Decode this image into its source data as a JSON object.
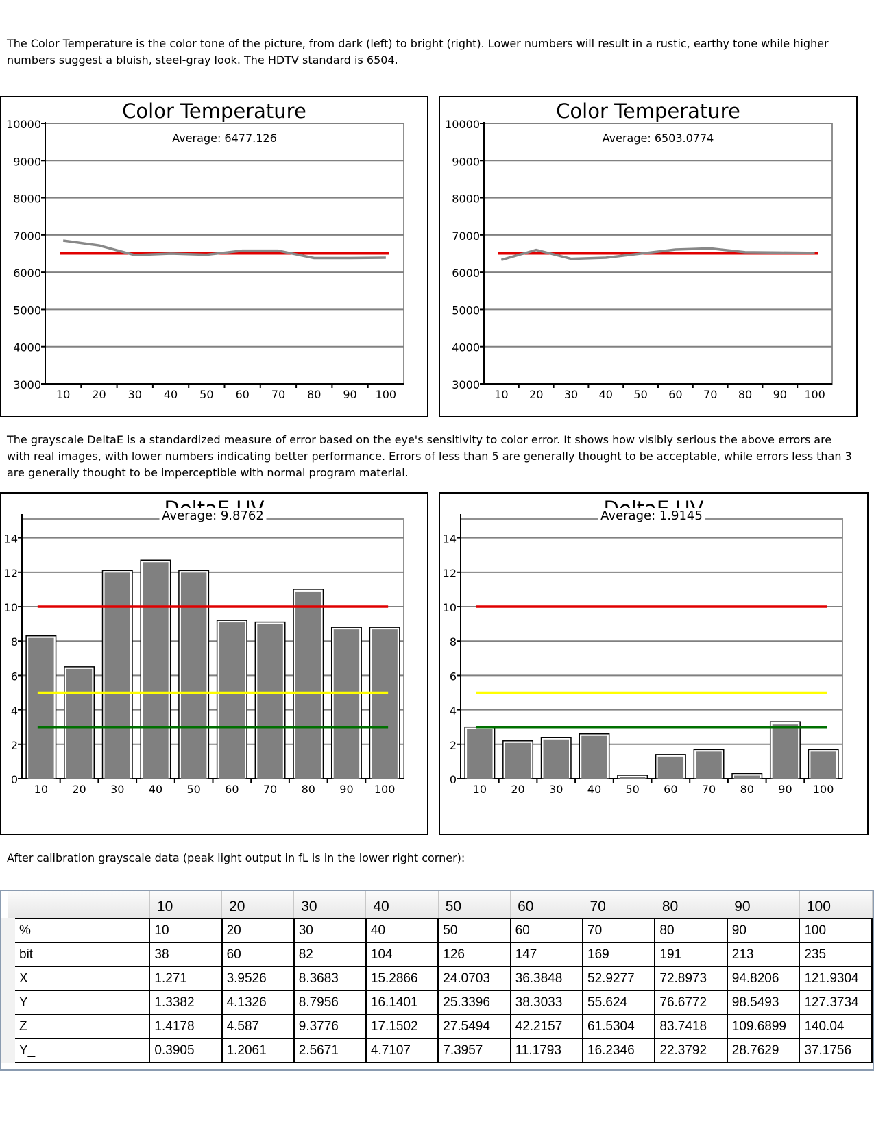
{
  "text": {
    "intro": "The Color Temperature is the color tone of the picture, from dark (left) to bright (right).  Lower numbers will result in a rustic, earthy tone while higher numbers suggest a bluish, steel-gray look. The HDTV standard is 6504.",
    "deltae": "The grayscale DeltaE is a standardized measure of error based on the eye's sensitivity to color error.  It shows how visibly serious the above errors are with real images, with lower numbers indicating better performance.  Errors of less than 5 are generally thought to be acceptable, while errors less than 3 are generally thought to be imperceptible with normal program material.",
    "after": "After calibration grayscale data (peak light output in fL is in the lower right corner):"
  },
  "colors": {
    "line_gray": "#888888",
    "target_red": "#e00000",
    "bar_gray": "#808080",
    "yellow": "#ffff00",
    "green": "#007000",
    "grid": "#808080"
  },
  "chart_data": [
    {
      "type": "line",
      "title": "Color Temperature",
      "annotation": "Average: 6477.126",
      "categories": [
        "10",
        "20",
        "30",
        "40",
        "50",
        "60",
        "70",
        "80",
        "90",
        "100"
      ],
      "series": [
        {
          "values": [
            6850,
            6720,
            6460,
            6500,
            6470,
            6580,
            6580,
            6380,
            6380,
            6390
          ]
        }
      ],
      "reference_lines": [
        {
          "value": 6504,
          "color": "#e00000"
        }
      ],
      "ylim": [
        3000,
        10000
      ],
      "yticks": [
        3000,
        4000,
        5000,
        6000,
        7000,
        8000,
        9000,
        10000
      ],
      "grid": true
    },
    {
      "type": "line",
      "title": "Color Temperature",
      "annotation": "Average: 6503.0774",
      "categories": [
        "10",
        "20",
        "30",
        "40",
        "50",
        "60",
        "70",
        "80",
        "90",
        "100"
      ],
      "series": [
        {
          "values": [
            6330,
            6600,
            6360,
            6390,
            6500,
            6610,
            6640,
            6540,
            6530,
            6520
          ]
        }
      ],
      "reference_lines": [
        {
          "value": 6504,
          "color": "#e00000"
        }
      ],
      "ylim": [
        3000,
        10000
      ],
      "yticks": [
        3000,
        4000,
        5000,
        6000,
        7000,
        8000,
        9000,
        10000
      ],
      "grid": true
    },
    {
      "type": "bar",
      "title": "DeltaE UV",
      "annotation": "Average: 9.8762",
      "categories": [
        "10",
        "20",
        "30",
        "40",
        "50",
        "60",
        "70",
        "80",
        "90",
        "100"
      ],
      "values": [
        8.3,
        6.5,
        12.1,
        12.7,
        12.1,
        9.2,
        9.1,
        11.0,
        8.8,
        8.8
      ],
      "reference_lines": [
        {
          "value": 10,
          "color": "#e00000"
        },
        {
          "value": 5,
          "color": "#ffff00"
        },
        {
          "value": 3,
          "color": "#007000"
        }
      ],
      "ylim": [
        0,
        15.3
      ],
      "yticks": [
        0,
        2,
        4,
        6,
        8,
        10,
        12,
        14
      ],
      "grid": true
    },
    {
      "type": "bar",
      "title": "DeltaE UV",
      "annotation": "Average: 1.9145",
      "categories": [
        "10",
        "20",
        "30",
        "40",
        "50",
        "60",
        "70",
        "80",
        "90",
        "100"
      ],
      "values": [
        3.0,
        2.2,
        2.4,
        2.6,
        0.2,
        1.4,
        1.7,
        0.3,
        3.3,
        1.7
      ],
      "reference_lines": [
        {
          "value": 10,
          "color": "#e00000"
        },
        {
          "value": 5,
          "color": "#ffff00"
        },
        {
          "value": 3,
          "color": "#007000"
        }
      ],
      "ylim": [
        0,
        15.3
      ],
      "yticks": [
        0,
        2,
        4,
        6,
        8,
        10,
        12,
        14
      ],
      "grid": true
    }
  ],
  "table": {
    "columns": [
      "10",
      "20",
      "30",
      "40",
      "50",
      "60",
      "70",
      "80",
      "90",
      "100"
    ],
    "rows": [
      {
        "label": "%",
        "cells": [
          "10",
          "20",
          "30",
          "40",
          "50",
          "60",
          "70",
          "80",
          "90",
          "100"
        ]
      },
      {
        "label": "bit",
        "cells": [
          "38",
          "60",
          "82",
          "104",
          "126",
          "147",
          "169",
          "191",
          "213",
          "235"
        ]
      },
      {
        "label": "X",
        "cells": [
          "1.271",
          "3.9526",
          "8.3683",
          "15.2866",
          "24.0703",
          "36.3848",
          "52.9277",
          "72.8973",
          "94.8206",
          "121.9304"
        ]
      },
      {
        "label": "Y",
        "cells": [
          "1.3382",
          "4.1326",
          "8.7956",
          "16.1401",
          "25.3396",
          "38.3033",
          "55.624",
          "76.6772",
          "98.5493",
          "127.3734"
        ]
      },
      {
        "label": "Z",
        "cells": [
          "1.4178",
          "4.587",
          "9.3776",
          "17.1502",
          "27.5494",
          "42.2157",
          "61.5304",
          "83.7418",
          "109.6899",
          "140.04"
        ]
      },
      {
        "label": "Y_",
        "cells": [
          "0.3905",
          "1.2061",
          "2.5671",
          "4.7107",
          "7.3957",
          "11.1793",
          "16.2346",
          "22.3792",
          "28.7629",
          "37.1756"
        ]
      }
    ]
  }
}
